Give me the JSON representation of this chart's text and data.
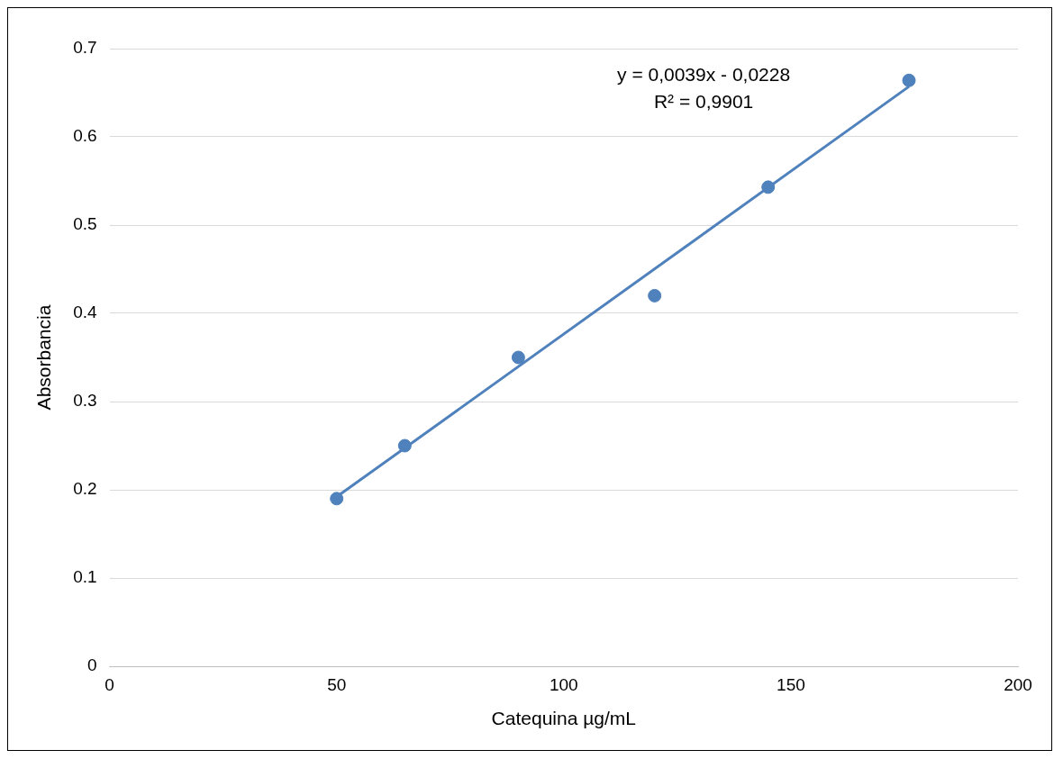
{
  "chart_data": {
    "type": "scatter",
    "xlabel": "Catequina µg/mL",
    "ylabel": "Absorbancia",
    "series": [
      {
        "color": "#4f81bd",
        "marker": "circle",
        "x": [
          50,
          65,
          90,
          120,
          145,
          176
        ],
        "values": [
          0.19,
          0.25,
          0.35,
          0.42,
          0.543,
          0.664
        ]
      },
      {
        "type": "line",
        "color": "#4f81bd",
        "marker": "none",
        "x": [
          50,
          176
        ],
        "values": [
          0.192,
          0.657
        ]
      }
    ],
    "xlim": [
      0,
      200
    ],
    "xticks": [
      0,
      50,
      100,
      150,
      200
    ],
    "ylim": [
      0,
      0.7
    ],
    "yticks": [
      0,
      0.1,
      0.2,
      0.3,
      0.4,
      0.5,
      0.6,
      0.7
    ],
    "grid": "y",
    "legend": false,
    "annotations": [
      "y = 0,0039x - 0,0228",
      "R² = 0,9901"
    ]
  }
}
